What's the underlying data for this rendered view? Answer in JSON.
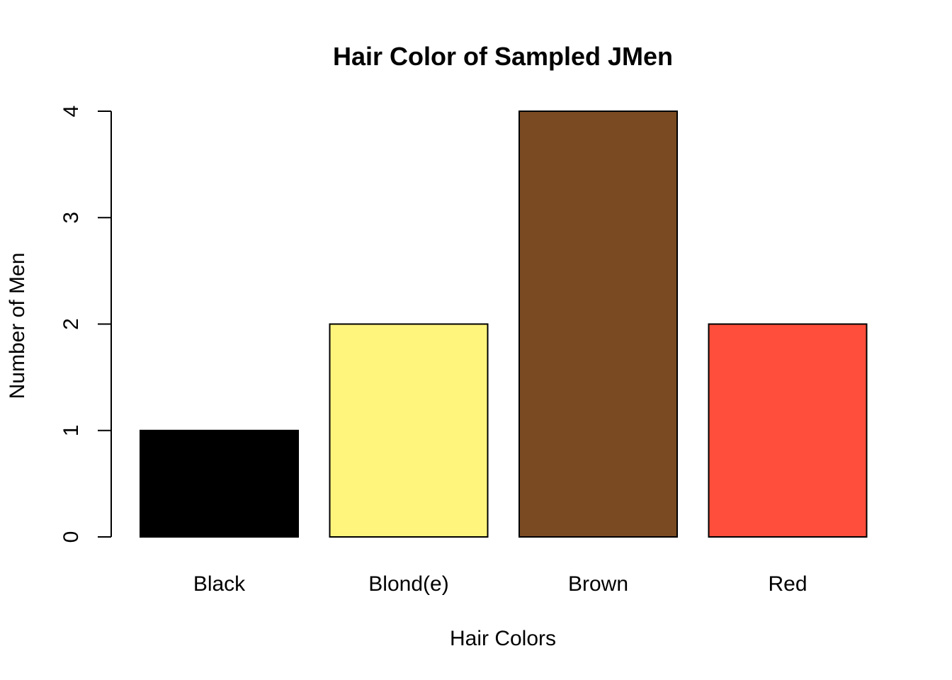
{
  "chart_data": {
    "type": "bar",
    "title": "Hair Color of Sampled JMen",
    "xlabel": "Hair Colors",
    "ylabel": "Number of Men",
    "categories": [
      "Black",
      "Blond(e)",
      "Brown",
      "Red"
    ],
    "values": [
      1,
      2,
      4,
      2
    ],
    "bar_colors": [
      "#000000",
      "#FFF57D",
      "#7A4A23",
      "#FF4E3B"
    ],
    "ylim": [
      0,
      4
    ],
    "yticks": [
      "0",
      "1",
      "2",
      "3",
      "4"
    ],
    "grid": false,
    "legend": "none"
  }
}
